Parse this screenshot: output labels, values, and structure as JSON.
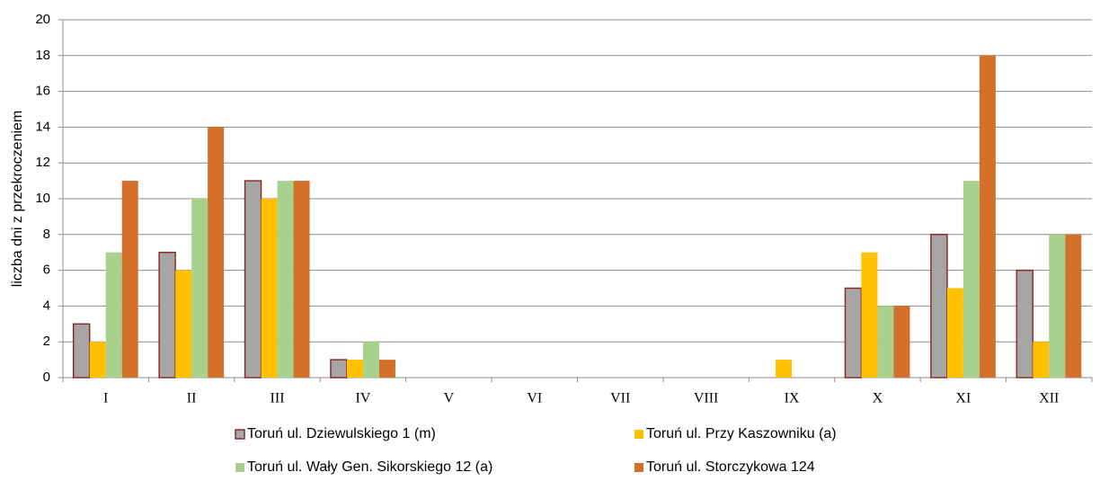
{
  "chart_data": {
    "type": "bar",
    "ylabel": "liczba dni z przekroczeniem",
    "categories": [
      "I",
      "II",
      "III",
      "IV",
      "V",
      "VI",
      "VII",
      "VIII",
      "IX",
      "X",
      "XI",
      "XII"
    ],
    "series": [
      {
        "name": "Toruń ul. Dziewulskiego 1 (m)",
        "color": "#a6a6a6",
        "edgecolor": "#8b2c2c",
        "values": [
          3,
          7,
          11,
          1,
          0,
          0,
          0,
          0,
          0,
          5,
          8,
          6
        ]
      },
      {
        "name": "Toruń ul. Przy Kaszowniku (a)",
        "color": "#ffc000",
        "values": [
          2,
          6,
          10,
          1,
          0,
          0,
          0,
          0,
          1,
          7,
          5,
          2
        ]
      },
      {
        "name": "Toruń ul. Wały Gen. Sikorskiego 12 (a)",
        "color": "#a9d18e",
        "values": [
          7,
          10,
          11,
          2,
          0,
          0,
          0,
          0,
          0,
          4,
          11,
          8
        ]
      },
      {
        "name": "Toruń ul. Storczykowa 124",
        "color": "#d4702a",
        "values": [
          11,
          14,
          11,
          1,
          0,
          0,
          0,
          0,
          0,
          4,
          18,
          8
        ]
      }
    ],
    "ylim": [
      0,
      20
    ],
    "yticks": [
      0,
      2,
      4,
      6,
      8,
      10,
      12,
      14,
      16,
      18,
      20
    ],
    "grid": true,
    "legend": "bottom"
  }
}
